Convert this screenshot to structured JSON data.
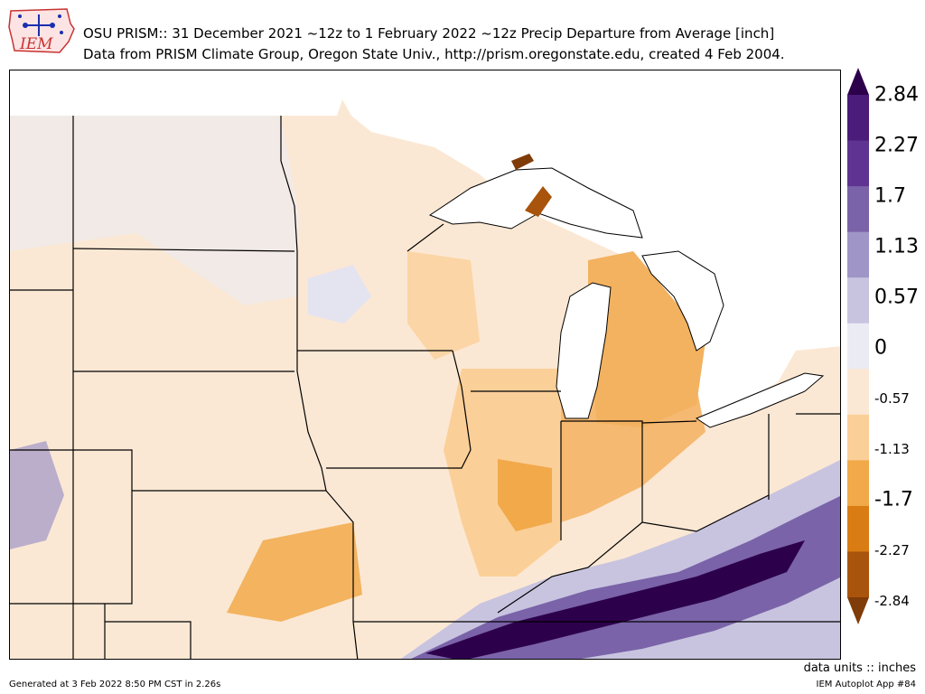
{
  "header": {
    "logo_text": "IEM",
    "title_line1": "OSU PRISM:: 31 December 2021 ~12z to 1 February 2022 ~12z Precip Departure from Average [inch]",
    "title_line2": "Data from PRISM Climate Group, Oregon State Univ., http://prism.oregonstate.edu, created 4 Feb 2004."
  },
  "colorbar": {
    "labels": [
      "2.84",
      "2.27",
      "1.7",
      "1.13",
      "0.57",
      "0",
      "-0.57",
      "-1.13",
      "-1.7",
      "-2.27",
      "-2.84"
    ],
    "colors": [
      "#4b1c7a",
      "#5e3391",
      "#7a63a8",
      "#9f95c7",
      "#c8c4e0",
      "#ebebf4",
      "#fbe8d4",
      "#fbcf98",
      "#f1a94a",
      "#d97c14",
      "#a8540c"
    ],
    "extend_top_color": "#2d004b",
    "extend_bottom_color": "#7f3b08"
  },
  "units_label": "data units :: inches",
  "footer": {
    "generated": "Generated at 3 Feb 2022 8:50 PM CST in 2.26s",
    "app": "IEM Autoplot App #84"
  }
}
